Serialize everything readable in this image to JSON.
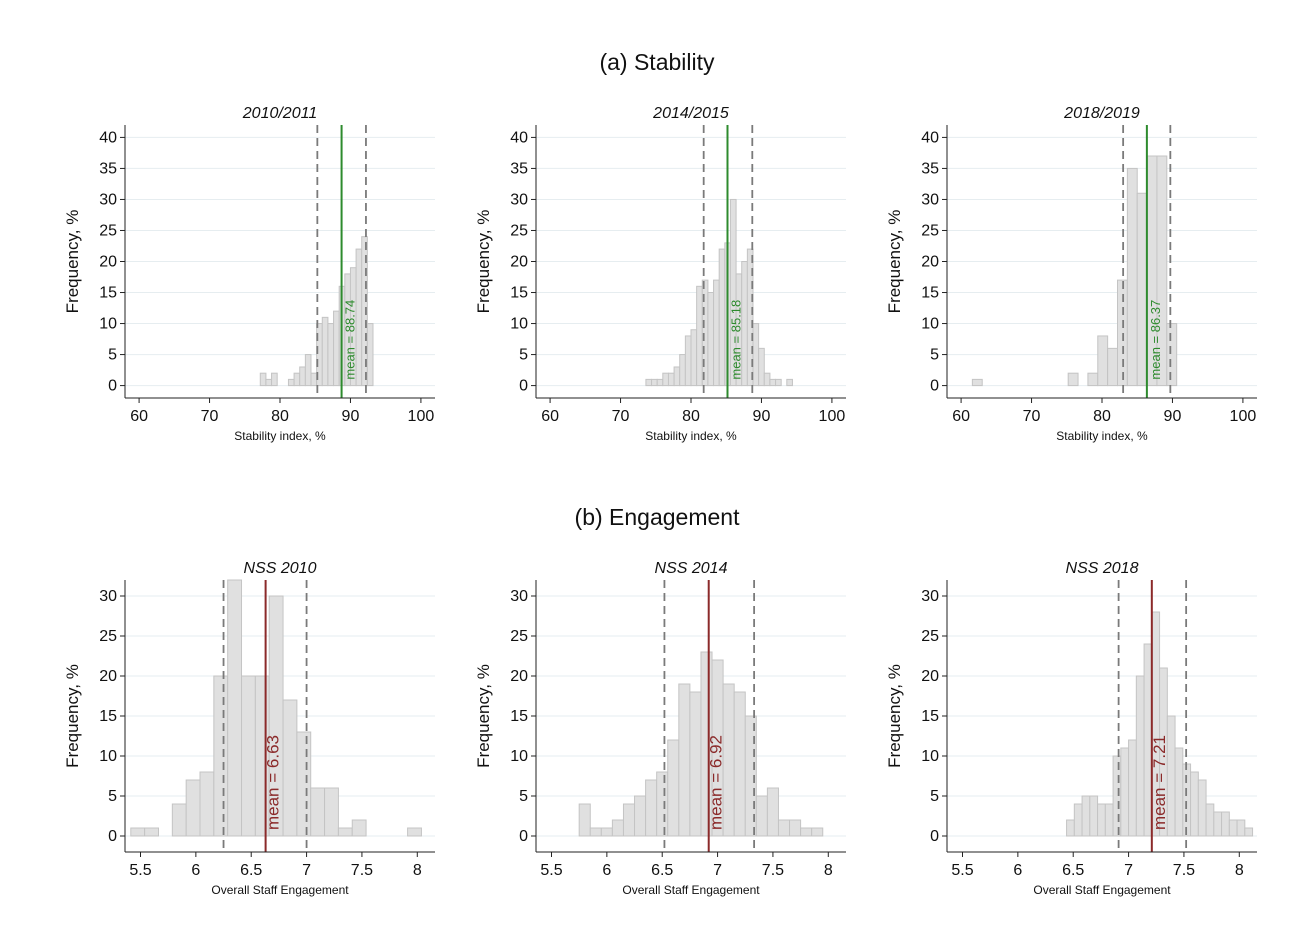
{
  "sections": [
    {
      "title": "(a) Stability"
    },
    {
      "title": "(b) Engagement"
    }
  ],
  "colors": {
    "bar_fill": "#e0e0e0",
    "bar_stroke": "#c4c4c4",
    "grid": "#e6edf0",
    "axis": "#222222",
    "dashed_line": "#7a7a7a",
    "mean_stability": "#2e8b2e",
    "mean_engagement": "#8b2a2a"
  },
  "chart_data": [
    {
      "type": "bar",
      "title": "2010/2011",
      "xlabel": "Stability index, %",
      "ylabel": "Frequency, %",
      "xlim": [
        58,
        102
      ],
      "ylim": [
        -2,
        42
      ],
      "xticks": [
        60,
        70,
        80,
        90,
        100
      ],
      "yticks": [
        0,
        5,
        10,
        15,
        20,
        25,
        30,
        35,
        40
      ],
      "bin_width": 0.8,
      "bins_x": [
        77.6,
        78.4,
        79.2,
        80.0,
        80.8,
        81.6,
        82.4,
        83.2,
        84.0,
        84.8,
        85.6,
        86.4,
        87.2,
        88.0,
        88.8,
        89.6,
        90.4,
        91.2,
        92.0,
        92.8
      ],
      "values": [
        2,
        1,
        2,
        0,
        0,
        1,
        2,
        3,
        5,
        2,
        10,
        11,
        10,
        12,
        16,
        18,
        19,
        22,
        24,
        10
      ],
      "mean": 88.74,
      "mean_label": "mean = 88.74",
      "band": [
        85.3,
        92.2
      ]
    },
    {
      "type": "bar",
      "title": "2014/2015",
      "xlabel": "Stability index, %",
      "ylabel": "Frequency, %",
      "xlim": [
        58,
        102
      ],
      "ylim": [
        -2,
        42
      ],
      "xticks": [
        60,
        70,
        80,
        90,
        100
      ],
      "yticks": [
        0,
        5,
        10,
        15,
        20,
        25,
        30,
        35,
        40
      ],
      "bin_width": 0.8,
      "bins_x": [
        74.0,
        74.8,
        75.6,
        76.4,
        77.2,
        78.0,
        78.8,
        79.6,
        80.4,
        81.2,
        82.0,
        82.8,
        83.6,
        84.4,
        85.2,
        86.0,
        86.8,
        87.6,
        88.4,
        89.2,
        90.0,
        90.8,
        91.6,
        92.4,
        93.2,
        94.0
      ],
      "values": [
        1,
        1,
        1,
        2,
        2,
        3,
        5,
        8,
        9,
        16,
        17,
        15,
        17,
        22,
        23,
        30,
        18,
        20,
        22,
        10,
        6,
        2,
        1,
        1,
        0,
        1
      ],
      "mean": 85.18,
      "mean_label": "mean = 85.18",
      "band": [
        81.8,
        88.7
      ]
    },
    {
      "type": "bar",
      "title": "2018/2019",
      "xlabel": "Stability index, %",
      "ylabel": "Frequency, %",
      "xlim": [
        58,
        102
      ],
      "ylim": [
        -2,
        42
      ],
      "xticks": [
        60,
        70,
        80,
        90,
        100
      ],
      "yticks": [
        0,
        5,
        10,
        15,
        20,
        25,
        30,
        35,
        40
      ],
      "bin_width": 1.4,
      "bins_x": [
        62.3,
        75.9,
        78.7,
        80.1,
        81.5,
        82.9,
        84.3,
        85.7,
        87.1,
        88.5,
        89.9
      ],
      "values": [
        1,
        2,
        2,
        8,
        6,
        17,
        35,
        31,
        37,
        37,
        10
      ],
      "mean": 86.37,
      "mean_label": "mean = 86.37",
      "band": [
        83.0,
        89.7
      ]
    },
    {
      "type": "bar",
      "title": "NSS 2010",
      "xlabel": "Overall Staff Engagement",
      "ylabel": "Frequency, %",
      "xlim": [
        5.36,
        8.16
      ],
      "ylim": [
        -2,
        32
      ],
      "xticks": [
        5.5,
        6,
        6.5,
        7,
        7.5,
        8
      ],
      "xtick_labels": [
        "5.5",
        "6",
        "6.5",
        "7",
        "7.5",
        "8"
      ],
      "yticks": [
        0,
        5,
        10,
        15,
        20,
        25,
        30
      ],
      "bin_width": 0.125,
      "bins_x": [
        5.475,
        5.6,
        5.725,
        5.85,
        5.975,
        6.1,
        6.225,
        6.35,
        6.475,
        6.6,
        6.725,
        6.85,
        6.975,
        7.1,
        7.225,
        7.35,
        7.475,
        7.6,
        7.725,
        7.85,
        7.975
      ],
      "values": [
        1,
        1,
        0,
        4,
        7,
        8,
        20,
        32,
        20,
        20,
        30,
        17,
        13,
        6,
        6,
        1,
        2,
        0,
        0,
        0,
        1
      ],
      "mean": 6.63,
      "mean_label": "mean = 6.63",
      "band": [
        6.25,
        7.0
      ]
    },
    {
      "type": "bar",
      "title": "NSS 2014",
      "xlabel": "Overall Staff Engagement",
      "ylabel": "Frequency, %",
      "xlim": [
        5.36,
        8.16
      ],
      "ylim": [
        -2,
        32
      ],
      "xticks": [
        5.5,
        6,
        6.5,
        7,
        7.5,
        8
      ],
      "xtick_labels": [
        "5.5",
        "6",
        "6.5",
        "7",
        "7.5",
        "8"
      ],
      "yticks": [
        0,
        5,
        10,
        15,
        20,
        25,
        30
      ],
      "bin_width": 0.1,
      "bins_x": [
        5.8,
        5.9,
        6.0,
        6.1,
        6.2,
        6.3,
        6.4,
        6.5,
        6.6,
        6.7,
        6.8,
        6.9,
        7.0,
        7.1,
        7.2,
        7.3,
        7.4,
        7.5,
        7.6,
        7.7,
        7.8,
        7.9
      ],
      "values": [
        4,
        1,
        1,
        2,
        4,
        5,
        7,
        8,
        12,
        19,
        18,
        23,
        22,
        19,
        18,
        15,
        5,
        6,
        2,
        2,
        1,
        1
      ],
      "mean": 6.92,
      "mean_label": "mean = 6.92",
      "band": [
        6.52,
        7.33
      ]
    },
    {
      "type": "bar",
      "title": "NSS 2018",
      "xlabel": "Overall Staff Engagement",
      "ylabel": "Frequency, %",
      "xlim": [
        5.36,
        8.16
      ],
      "ylim": [
        -2,
        32
      ],
      "xticks": [
        5.5,
        6,
        6.5,
        7,
        7.5,
        8
      ],
      "xtick_labels": [
        "5.5",
        "6",
        "6.5",
        "7",
        "7.5",
        "8"
      ],
      "yticks": [
        0,
        5,
        10,
        15,
        20,
        25,
        30
      ],
      "bin_width": 0.07,
      "bins_x": [
        6.475,
        6.545,
        6.615,
        6.685,
        6.755,
        6.825,
        6.895,
        6.965,
        7.035,
        7.105,
        7.175,
        7.245,
        7.315,
        7.385,
        7.455,
        7.525,
        7.595,
        7.665,
        7.735,
        7.805,
        7.875,
        7.945,
        8.015,
        8.085
      ],
      "values": [
        2,
        4,
        5,
        5,
        4,
        4,
        10,
        11,
        12,
        20,
        24,
        28,
        21,
        15,
        11,
        9,
        8,
        7,
        4,
        3,
        3,
        2,
        2,
        1
      ],
      "mean": 7.21,
      "mean_label": "mean = 7.21",
      "band": [
        6.91,
        7.52
      ]
    }
  ]
}
